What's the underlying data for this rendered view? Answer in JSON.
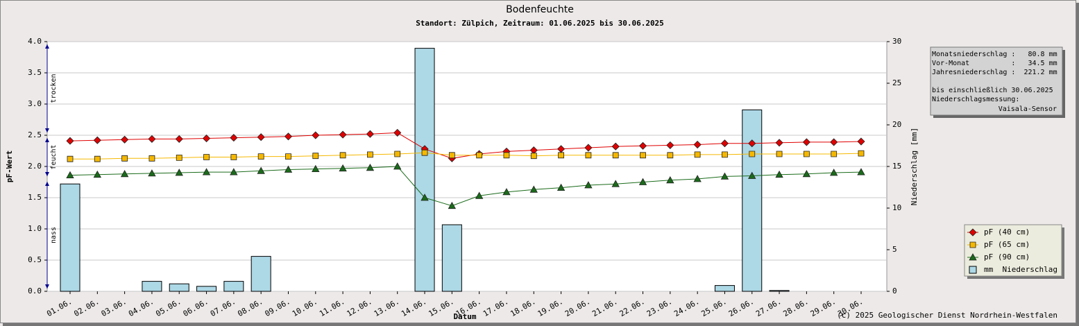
{
  "chart_data": {
    "type": "combo",
    "title": "Bodenfeuchte",
    "subtitle": "Standort: Zülpich, Zeitraum: 01.06.2025 bis 30.06.2025",
    "x_label": "Datum",
    "y_label": "pF-Wert",
    "y2_label": "Niederschlag [mm]",
    "categories": [
      "01.06.",
      "02.06.",
      "03.06.",
      "04.06.",
      "05.06.",
      "06.06.",
      "07.06.",
      "08.06.",
      "09.06.",
      "10.06.",
      "11.06.",
      "12.06.",
      "13.06.",
      "14.06.",
      "15.06.",
      "16.06.",
      "17.06.",
      "18.06.",
      "19.06.",
      "20.06.",
      "21.06.",
      "22.06.",
      "23.06.",
      "24.06.",
      "25.06.",
      "26.06.",
      "27.06.",
      "28.06.",
      "29.06.",
      "30.06."
    ],
    "ylim": [
      0,
      4
    ],
    "yticks": [
      {
        "value": 0,
        "label": "0.0"
      },
      0.5,
      {
        "value": 1,
        "label": "1.0"
      },
      1.5,
      {
        "value": 2,
        "label": "2.0"
      },
      2.5,
      {
        "value": 3,
        "label": "3.0"
      },
      3.5,
      {
        "value": 4,
        "label": "4.0"
      }
    ],
    "y2lim": [
      0,
      30
    ],
    "y2ticks": [
      0,
      5,
      10,
      15,
      20,
      25,
      30
    ],
    "grid": true,
    "legend": "lower right",
    "series": [
      {
        "name": "mm  Niederschlag",
        "type": "bar",
        "axis": "y2",
        "color": "#add8e6",
        "marker": "square",
        "values": [
          12.9,
          0,
          0,
          1.2,
          0.9,
          0.6,
          1.2,
          4.2,
          0,
          0,
          0,
          0,
          0,
          29.2,
          8.0,
          0,
          0,
          0,
          0,
          0,
          0,
          0,
          0,
          0,
          0.7,
          21.8,
          0.1,
          0,
          0,
          0
        ]
      },
      {
        "name": "pF (40 cm)",
        "type": "line",
        "color": "#e00000",
        "marker": "diamond",
        "values": [
          2.41,
          2.42,
          2.43,
          2.44,
          2.44,
          2.45,
          2.46,
          2.47,
          2.48,
          2.5,
          2.51,
          2.52,
          2.54,
          2.28,
          2.13,
          2.2,
          2.24,
          2.26,
          2.28,
          2.3,
          2.32,
          2.33,
          2.34,
          2.35,
          2.37,
          2.37,
          2.38,
          2.39,
          2.39,
          2.4
        ]
      },
      {
        "name": "pF (65 cm)",
        "type": "line",
        "color": "#f5b800",
        "marker": "square",
        "values": [
          2.12,
          2.12,
          2.13,
          2.13,
          2.14,
          2.15,
          2.15,
          2.16,
          2.16,
          2.17,
          2.18,
          2.19,
          2.2,
          2.22,
          2.18,
          2.18,
          2.18,
          2.17,
          2.18,
          2.18,
          2.18,
          2.18,
          2.18,
          2.19,
          2.19,
          2.2,
          2.2,
          2.2,
          2.2,
          2.21
        ]
      },
      {
        "name": "pF (90 cm)",
        "type": "line",
        "color": "#1a6b1a",
        "marker": "triangle",
        "values": [
          1.86,
          1.87,
          1.88,
          1.89,
          1.9,
          1.91,
          1.91,
          1.93,
          1.95,
          1.96,
          1.97,
          1.98,
          2.0,
          1.5,
          1.37,
          1.53,
          1.59,
          1.63,
          1.66,
          1.7,
          1.72,
          1.75,
          1.78,
          1.8,
          1.84,
          1.85,
          1.87,
          1.88,
          1.9,
          1.91
        ]
      }
    ],
    "zones": [
      {
        "label": "trocken",
        "from": 2.5,
        "to": 4.0
      },
      {
        "label": "feucht",
        "from": 1.8,
        "to": 2.5
      },
      {
        "label": "nass",
        "from": 0,
        "to": 1.8
      }
    ],
    "info_box": {
      "lines": [
        "Monatsniederschlag :   80.8 mm",
        "Vor-Monat          :   34.5 mm",
        "Jahresniederschlag :  221.2 mm"
      ],
      "note": [
        "bis einschließlich 30.06.2025",
        "Niederschlagsmessung:"
      ],
      "sensor": "Vaisala-Sensor"
    },
    "copyright": "(c) 2025 Geologischer Dienst Nordrhein-Westfalen"
  }
}
